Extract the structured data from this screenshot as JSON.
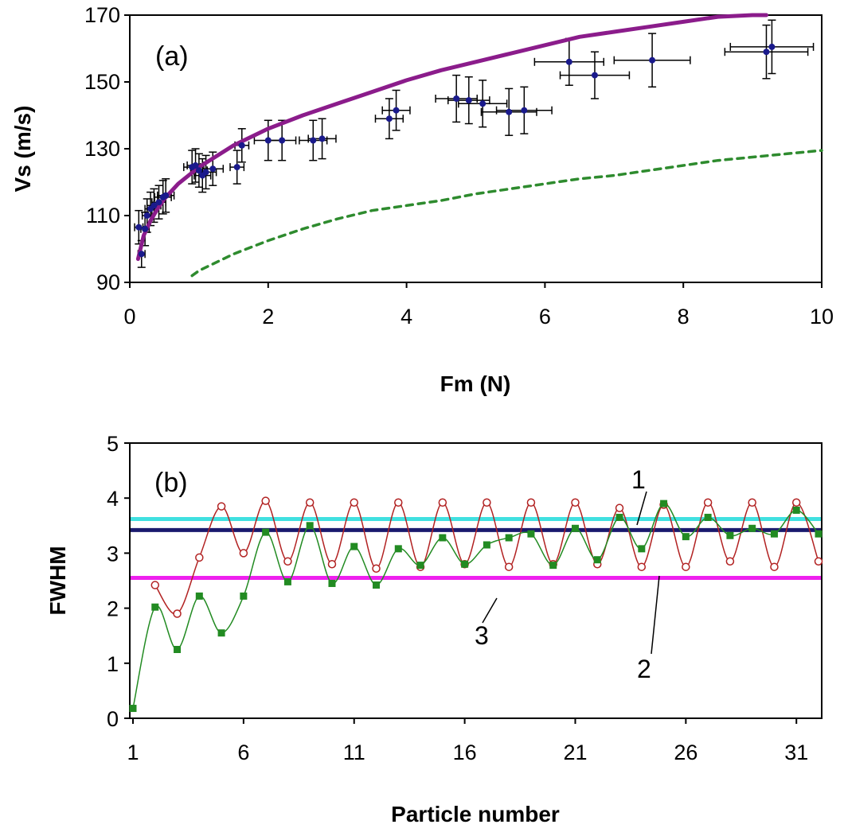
{
  "chart_data": [
    {
      "type": "scatter",
      "panel_label": "(a)",
      "xlabel": "Fm (N)",
      "ylabel": "Vs (m/s)",
      "xlim": [
        0,
        10
      ],
      "ylim": [
        90,
        170
      ],
      "x_ticks": [
        "0",
        "2",
        "4",
        "6",
        "8",
        "10"
      ],
      "y_ticks": [
        "90",
        "110",
        "130",
        "150",
        "170"
      ],
      "grid": false,
      "legend": "none",
      "series": [
        {
          "kind": "scatter-errorbars",
          "color": "#1a1a8c",
          "points": [
            {
              "x": 0.13,
              "y": 106.5,
              "xerr": 0.06,
              "yerr": 5
            },
            {
              "x": 0.17,
              "y": 98.5,
              "xerr": 0.05,
              "yerr": 4
            },
            {
              "x": 0.22,
              "y": 106,
              "xerr": 0.06,
              "yerr": 5
            },
            {
              "x": 0.25,
              "y": 110,
              "xerr": 0.07,
              "yerr": 5
            },
            {
              "x": 0.3,
              "y": 112,
              "xerr": 0.08,
              "yerr": 5
            },
            {
              "x": 0.35,
              "y": 113,
              "xerr": 0.1,
              "yerr": 5
            },
            {
              "x": 0.42,
              "y": 114,
              "xerr": 0.1,
              "yerr": 5
            },
            {
              "x": 0.48,
              "y": 115.5,
              "xerr": 0.12,
              "yerr": 5
            },
            {
              "x": 0.52,
              "y": 116,
              "xerr": 0.12,
              "yerr": 5
            },
            {
              "x": 0.9,
              "y": 124.5,
              "xerr": 0.12,
              "yerr": 5
            },
            {
              "x": 0.95,
              "y": 125,
              "xerr": 0.12,
              "yerr": 5
            },
            {
              "x": 1.0,
              "y": 123.5,
              "xerr": 0.12,
              "yerr": 5
            },
            {
              "x": 1.05,
              "y": 122,
              "xerr": 0.12,
              "yerr": 5
            },
            {
              "x": 1.1,
              "y": 123,
              "xerr": 0.15,
              "yerr": 5
            },
            {
              "x": 1.2,
              "y": 124,
              "xerr": 0.15,
              "yerr": 5
            },
            {
              "x": 1.55,
              "y": 124.5,
              "xerr": 0.1,
              "yerr": 5
            },
            {
              "x": 1.62,
              "y": 131,
              "xerr": 0.1,
              "yerr": 5
            },
            {
              "x": 2.0,
              "y": 132.5,
              "xerr": 0.2,
              "yerr": 6
            },
            {
              "x": 2.2,
              "y": 132.5,
              "xerr": 0.2,
              "yerr": 6
            },
            {
              "x": 2.65,
              "y": 132.5,
              "xerr": 0.2,
              "yerr": 6
            },
            {
              "x": 2.78,
              "y": 133,
              "xerr": 0.2,
              "yerr": 6
            },
            {
              "x": 3.75,
              "y": 139,
              "xerr": 0.2,
              "yerr": 6
            },
            {
              "x": 3.85,
              "y": 141.5,
              "xerr": 0.2,
              "yerr": 6
            },
            {
              "x": 4.72,
              "y": 145,
              "xerr": 0.3,
              "yerr": 7
            },
            {
              "x": 4.9,
              "y": 144.5,
              "xerr": 0.3,
              "yerr": 7
            },
            {
              "x": 5.1,
              "y": 143.5,
              "xerr": 0.35,
              "yerr": 7
            },
            {
              "x": 5.48,
              "y": 141,
              "xerr": 0.4,
              "yerr": 7
            },
            {
              "x": 5.7,
              "y": 141.5,
              "xerr": 0.4,
              "yerr": 7
            },
            {
              "x": 6.35,
              "y": 156,
              "xerr": 0.5,
              "yerr": 7
            },
            {
              "x": 6.72,
              "y": 152,
              "xerr": 0.5,
              "yerr": 7
            },
            {
              "x": 7.55,
              "y": 156.5,
              "xerr": 0.55,
              "yerr": 8
            },
            {
              "x": 9.2,
              "y": 159,
              "xerr": 0.6,
              "yerr": 8
            },
            {
              "x": 9.28,
              "y": 160.5,
              "xerr": 0.6,
              "yerr": 8
            }
          ]
        },
        {
          "kind": "line",
          "style": "solid",
          "color": "#8b1c8b",
          "x": [
            0.12,
            0.2,
            0.3,
            0.4,
            0.5,
            0.7,
            1.0,
            1.5,
            2.0,
            2.5,
            3.0,
            3.5,
            4.0,
            4.5,
            5.0,
            5.5,
            6.0,
            6.5,
            7.0,
            7.5,
            8.0,
            8.5,
            9.0,
            9.2
          ],
          "y": [
            97,
            104,
            108.5,
            112,
            115,
            119.5,
            124.5,
            131,
            136,
            140,
            143.5,
            147,
            150.5,
            153.5,
            156,
            158.5,
            161,
            163.5,
            165,
            166.5,
            168,
            169.5,
            170.5,
            171
          ]
        },
        {
          "kind": "line",
          "style": "dashed",
          "color": "#2e8b2e",
          "x": [
            0.9,
            1.0,
            1.5,
            2.0,
            2.5,
            3.0,
            3.5,
            4.0,
            4.5,
            5.0,
            5.5,
            6.0,
            6.5,
            7.0,
            7.5,
            8.0,
            8.5,
            9.0,
            9.5,
            10.0
          ],
          "y": [
            92,
            93.5,
            98.5,
            102.5,
            106,
            109,
            111.5,
            113,
            114.5,
            116.5,
            118,
            119.5,
            121,
            122,
            123.5,
            125,
            126.5,
            127.5,
            128.5,
            129.5
          ]
        }
      ]
    },
    {
      "type": "line",
      "panel_label": "(b)",
      "xlabel": "Particle number",
      "ylabel": "FWHM",
      "xlim": [
        1,
        32
      ],
      "ylim": [
        0,
        5
      ],
      "x_ticks": [
        "1",
        "6",
        "11",
        "16",
        "21",
        "26",
        "31"
      ],
      "y_ticks": [
        "0",
        "1",
        "2",
        "3",
        "4",
        "5"
      ],
      "grid": false,
      "legend": "none",
      "annotations": [
        "1",
        "2",
        "3"
      ],
      "series": [
        {
          "kind": "line-markers",
          "marker": "open-circle",
          "color": "#b22222",
          "x": [
            2,
            3,
            4,
            5,
            6,
            7,
            8,
            9,
            10,
            11,
            12,
            13,
            14,
            15,
            16,
            17,
            18,
            19,
            20,
            21,
            22,
            23,
            24,
            25,
            26,
            27,
            28,
            29,
            30,
            31,
            32
          ],
          "y": [
            2.42,
            1.9,
            2.92,
            3.85,
            3.0,
            3.95,
            2.85,
            3.92,
            2.8,
            3.92,
            2.72,
            3.92,
            2.75,
            3.92,
            2.8,
            3.92,
            2.75,
            3.92,
            2.8,
            3.92,
            2.8,
            3.82,
            2.75,
            3.88,
            2.75,
            3.92,
            2.85,
            3.92,
            2.75,
            3.92,
            2.85
          ]
        },
        {
          "kind": "line-markers",
          "marker": "filled-square",
          "color": "#228b22",
          "x": [
            1,
            2,
            3,
            4,
            5,
            6,
            7,
            8,
            9,
            10,
            11,
            12,
            13,
            14,
            15,
            16,
            17,
            18,
            19,
            20,
            21,
            22,
            23,
            24,
            25,
            26,
            27,
            28,
            29,
            30,
            31,
            32
          ],
          "y": [
            0.18,
            2.02,
            1.25,
            2.22,
            1.55,
            2.22,
            3.38,
            2.48,
            3.5,
            2.45,
            3.12,
            2.42,
            3.08,
            2.78,
            3.28,
            2.8,
            3.15,
            3.28,
            3.35,
            2.78,
            3.45,
            2.88,
            3.65,
            3.08,
            3.9,
            3.3,
            3.65,
            3.32,
            3.45,
            3.35,
            3.78,
            3.35
          ]
        },
        {
          "kind": "hline",
          "color": "#40e0e0",
          "y": 3.62
        },
        {
          "kind": "hline",
          "color": "#1a1a6e",
          "y": 3.42
        },
        {
          "kind": "hline",
          "color": "#ee20ee",
          "y": 2.55
        }
      ]
    }
  ]
}
